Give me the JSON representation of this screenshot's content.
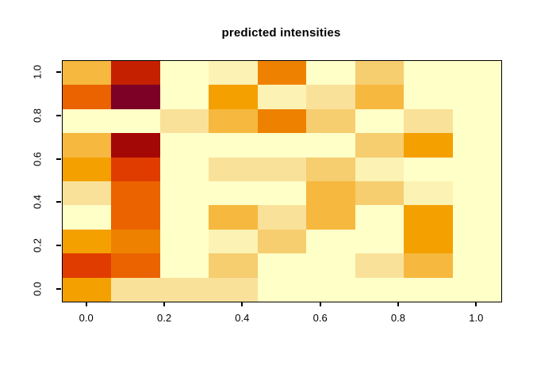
{
  "title": "predicted intensities",
  "chart_data": {
    "type": "heatmap",
    "title": "predicted intensities",
    "xlabel": "",
    "ylabel": "",
    "n_cols": 9,
    "n_rows": 10,
    "x_extent": [
      -0.0625,
      1.0625
    ],
    "y_extent": [
      -0.0556,
      1.0556
    ],
    "x_tick_values": [
      0.0,
      0.2,
      0.4,
      0.6,
      0.8,
      1.0
    ],
    "x_tick_labels": [
      "0.0",
      "0.2",
      "0.4",
      "0.6",
      "0.8",
      "1.0"
    ],
    "y_tick_values": [
      0.0,
      0.2,
      0.4,
      0.6,
      0.8,
      1.0
    ],
    "y_tick_labels": [
      "0.0",
      "0.2",
      "0.4",
      "0.6",
      "0.8",
      "1.0"
    ],
    "grid": false,
    "legend": "none",
    "palette_order_low_to_high": [
      "cream",
      "pale_cream",
      "pale_tan",
      "tan",
      "orange_tan",
      "orange",
      "strong_orange",
      "dark_orange",
      "red_orange",
      "red",
      "dark_red",
      "maroon"
    ],
    "palette": {
      "cream": "#FFFFC8",
      "pale_cream": "#FCF2B3",
      "pale_tan": "#FAE199",
      "tan": "#F6CD6F",
      "orange_tan": "#F6B83E",
      "orange": "#F4A000",
      "strong_orange": "#EF8100",
      "dark_orange": "#EB6300",
      "red_orange": "#E03C00",
      "red": "#C52000",
      "dark_red": "#A40806",
      "maroon": "#7D0026"
    },
    "cells_rows_top_to_bottom": [
      [
        "orange_tan",
        "red",
        "cream",
        "pale_cream",
        "strong_orange",
        "cream",
        "tan",
        "cream",
        "cream"
      ],
      [
        "dark_orange",
        "maroon",
        "cream",
        "orange",
        "pale_cream",
        "pale_tan",
        "orange_tan",
        "cream",
        "cream"
      ],
      [
        "cream",
        "cream",
        "pale_tan",
        "orange_tan",
        "strong_orange",
        "tan",
        "cream",
        "pale_tan",
        "cream"
      ],
      [
        "orange_tan",
        "dark_red",
        "cream",
        "cream",
        "cream",
        "cream",
        "tan",
        "orange",
        "cream"
      ],
      [
        "orange",
        "red_orange",
        "cream",
        "pale_tan",
        "pale_tan",
        "tan",
        "pale_cream",
        "cream",
        "cream"
      ],
      [
        "pale_tan",
        "dark_orange",
        "cream",
        "cream",
        "cream",
        "orange_tan",
        "tan",
        "pale_cream",
        "cream"
      ],
      [
        "cream",
        "dark_orange",
        "cream",
        "orange_tan",
        "pale_tan",
        "orange_tan",
        "cream",
        "orange",
        "cream"
      ],
      [
        "orange",
        "strong_orange",
        "cream",
        "pale_cream",
        "tan",
        "cream",
        "cream",
        "orange",
        "cream"
      ],
      [
        "red_orange",
        "dark_orange",
        "cream",
        "tan",
        "cream",
        "cream",
        "pale_tan",
        "orange_tan",
        "cream"
      ],
      [
        "orange",
        "pale_tan",
        "pale_tan",
        "pale_tan",
        "cream",
        "cream",
        "cream",
        "cream",
        "cream"
      ]
    ],
    "axis_color": "#000000",
    "background_color": "#FFFFFF"
  }
}
